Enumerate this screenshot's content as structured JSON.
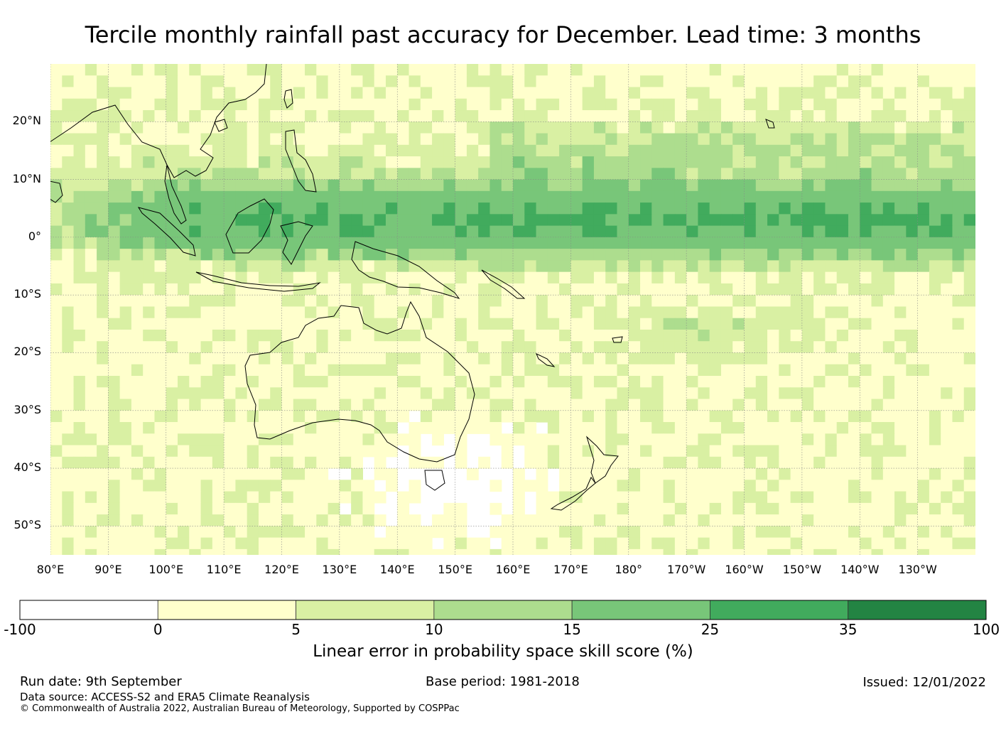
{
  "title": "Tercile monthly rainfall past accuracy for December. Lead time: 3 months",
  "map": {
    "lat_labels": [
      "20°N",
      "10°N",
      "0°",
      "10°S",
      "20°S",
      "30°S",
      "40°S",
      "50°S"
    ],
    "lat_values": [
      20,
      10,
      0,
      -10,
      -20,
      -30,
      -40,
      -50
    ],
    "lon_labels": [
      "80°E",
      "90°E",
      "100°E",
      "110°E",
      "120°E",
      "130°E",
      "140°E",
      "150°E",
      "160°E",
      "170°E",
      "180°",
      "170°W",
      "160°W",
      "150°W",
      "140°W",
      "130°W"
    ],
    "lon_values": [
      80,
      90,
      100,
      110,
      120,
      130,
      140,
      150,
      160,
      170,
      180,
      190,
      200,
      210,
      220,
      230
    ],
    "lon_range": [
      80,
      240
    ],
    "lat_range": [
      -55,
      30
    ]
  },
  "colorbar": {
    "title": "Linear error in probability space skill score (%)",
    "tick_labels": [
      "-100",
      "0",
      "5",
      "10",
      "15",
      "25",
      "35",
      "100"
    ],
    "colors": [
      "#ffffff",
      "#ffffcc",
      "#d9f0a3",
      "#addd8e",
      "#78c679",
      "#41ab5d",
      "#238443"
    ]
  },
  "footer": {
    "run_date": "Run date: 9th September",
    "base_period": "Base period: 1981-2018",
    "issued": "Issued: 12/01/2022",
    "data_source": "Data source: ACCESS-S2 and ERA5 Climate Reanalysis",
    "copyright": "© Commonwealth of Australia 2022, Australian Bureau of Meteorology, Supported by COSPPac"
  }
}
